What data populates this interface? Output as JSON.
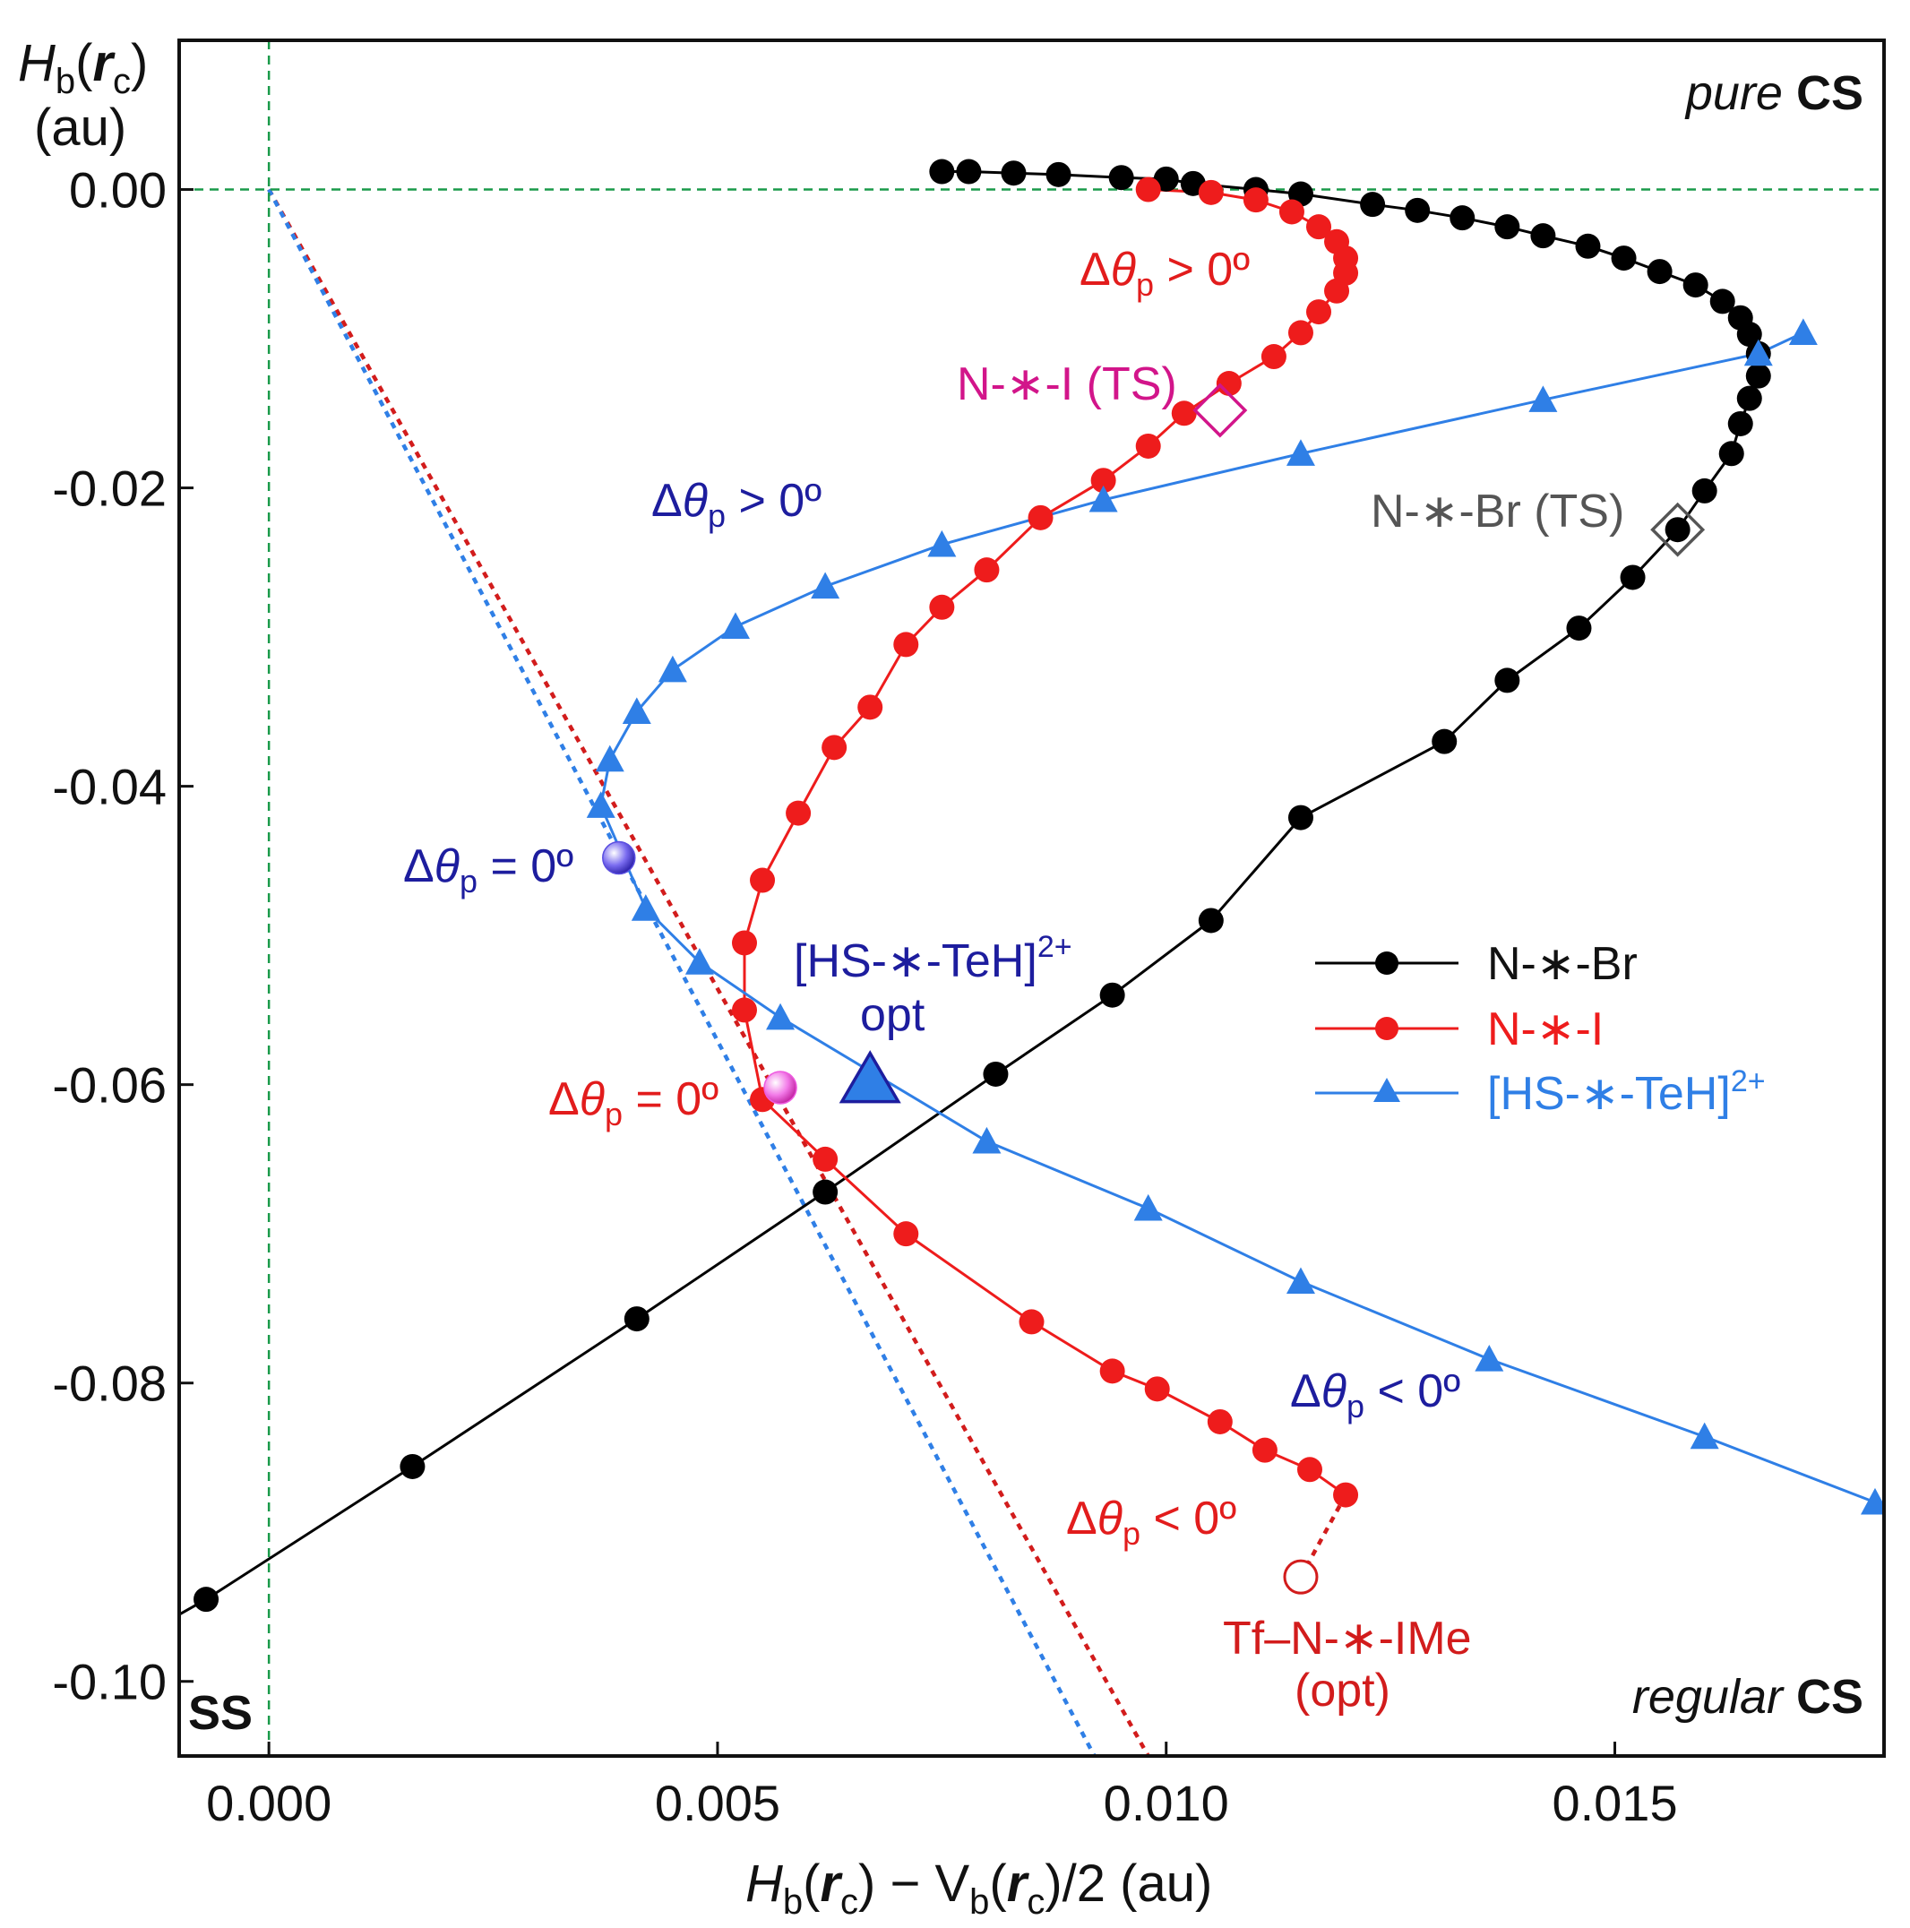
{
  "chart_data": {
    "type": "line",
    "title": "",
    "xlabel": "Hb(rc) − Vb(rc)/2 (au)",
    "ylabel": "Hb(rc) (au)",
    "xlim": [
      -0.001,
      0.018
    ],
    "ylim": [
      -0.105,
      0.01
    ],
    "x_ticks": [
      0.0,
      0.005,
      0.01,
      0.015
    ],
    "x_tick_labels": [
      "0.000",
      "0.005",
      "0.010",
      "0.015"
    ],
    "y_ticks": [
      0.0,
      -0.02,
      -0.04,
      -0.06,
      -0.08,
      -0.1
    ],
    "y_tick_labels": [
      "0.00",
      "-0.02",
      "-0.04",
      "-0.06",
      "-0.08",
      "-0.10"
    ],
    "grid": false,
    "legend_position": "center-right",
    "colors": {
      "black": "#000000",
      "red": "#ee1c1c",
      "blue": "#2f7fe6",
      "darkblue": "#1d1d9e",
      "green": "#1a9a4a",
      "magenta": "#d2158a",
      "gray": "#555555",
      "darkred": "#d21c1c"
    },
    "series": [
      {
        "name": "N-∗-Br",
        "color": "#000000",
        "marker": "circle",
        "points": [
          [
            -0.0007,
            -0.0945
          ],
          [
            0.0016,
            -0.0856
          ],
          [
            0.0041,
            -0.0757
          ],
          [
            0.0062,
            -0.0672
          ],
          [
            0.0081,
            -0.0593
          ],
          [
            0.0094,
            -0.054
          ],
          [
            0.0105,
            -0.049
          ],
          [
            0.0115,
            -0.0421
          ],
          [
            0.0131,
            -0.037
          ],
          [
            0.0138,
            -0.0329
          ],
          [
            0.0146,
            -0.0294
          ],
          [
            0.0152,
            -0.026
          ],
          [
            0.0157,
            -0.0228
          ],
          [
            0.016,
            -0.0202
          ],
          [
            0.0163,
            -0.0177
          ],
          [
            0.0164,
            -0.0157
          ],
          [
            0.0165,
            -0.014
          ],
          [
            0.0166,
            -0.0125
          ],
          [
            0.0166,
            -0.011
          ],
          [
            0.0165,
            -0.0097
          ],
          [
            0.0164,
            -0.0086
          ],
          [
            0.0162,
            -0.0075
          ],
          [
            0.0159,
            -0.0064
          ],
          [
            0.0155,
            -0.0055
          ],
          [
            0.0151,
            -0.0046
          ],
          [
            0.0147,
            -0.0038
          ],
          [
            0.0142,
            -0.0031
          ],
          [
            0.0138,
            -0.0025
          ],
          [
            0.0133,
            -0.0019
          ],
          [
            0.0128,
            -0.0014
          ],
          [
            0.0123,
            -0.001
          ],
          [
            0.0115,
            -0.0003
          ],
          [
            0.011,
            0.0
          ],
          [
            0.0103,
            0.0004
          ],
          [
            0.01,
            0.0007
          ],
          [
            0.0095,
            0.0008
          ],
          [
            0.0088,
            0.001
          ],
          [
            0.0083,
            0.0011
          ],
          [
            0.0078,
            0.0012
          ],
          [
            0.0075,
            0.0012
          ]
        ]
      },
      {
        "name": "N-∗-I",
        "color": "#ee1c1c",
        "marker": "circle",
        "points": [
          [
            0.012,
            -0.0875
          ],
          [
            0.0116,
            -0.0858
          ],
          [
            0.0111,
            -0.0845
          ],
          [
            0.0106,
            -0.0826
          ],
          [
            0.0099,
            -0.0804
          ],
          [
            0.0094,
            -0.0792
          ],
          [
            0.0085,
            -0.0759
          ],
          [
            0.0071,
            -0.07
          ],
          [
            0.0062,
            -0.065
          ],
          [
            0.0055,
            -0.061
          ],
          [
            0.0053,
            -0.055
          ],
          [
            0.0053,
            -0.0505
          ],
          [
            0.0055,
            -0.0463
          ],
          [
            0.0059,
            -0.0418
          ],
          [
            0.0063,
            -0.0374
          ],
          [
            0.0067,
            -0.0347
          ],
          [
            0.0071,
            -0.0305
          ],
          [
            0.0075,
            -0.028
          ],
          [
            0.008,
            -0.0255
          ],
          [
            0.0086,
            -0.022
          ],
          [
            0.0093,
            -0.0195
          ],
          [
            0.0098,
            -0.0172
          ],
          [
            0.0102,
            -0.015
          ],
          [
            0.0107,
            -0.013
          ],
          [
            0.0112,
            -0.0112
          ],
          [
            0.0115,
            -0.0096
          ],
          [
            0.0117,
            -0.0082
          ],
          [
            0.0119,
            -0.0068
          ],
          [
            0.012,
            -0.0056
          ],
          [
            0.012,
            -0.0046
          ],
          [
            0.0119,
            -0.0035
          ],
          [
            0.0117,
            -0.0025
          ],
          [
            0.0114,
            -0.0015
          ],
          [
            0.011,
            -0.0007
          ],
          [
            0.0105,
            -0.0002
          ],
          [
            0.0098,
            0.0
          ]
        ]
      },
      {
        "name": "[HS-∗-TeH]2+",
        "color": "#2f7fe6",
        "marker": "triangle",
        "points": [
          [
            0.0171,
            -0.0096
          ],
          [
            0.0166,
            -0.011
          ],
          [
            0.0142,
            -0.0141
          ],
          [
            0.0115,
            -0.0177
          ],
          [
            0.0093,
            -0.0208
          ],
          [
            0.0075,
            -0.0238
          ],
          [
            0.0062,
            -0.0266
          ],
          [
            0.0052,
            -0.0293
          ],
          [
            0.0045,
            -0.0322
          ],
          [
            0.0041,
            -0.035
          ],
          [
            0.0038,
            -0.0382
          ],
          [
            0.0037,
            -0.0413
          ],
          [
            0.0042,
            -0.0482
          ],
          [
            0.0048,
            -0.0518
          ],
          [
            0.0057,
            -0.0555
          ],
          [
            0.008,
            -0.0638
          ],
          [
            0.0098,
            -0.0683
          ],
          [
            0.0115,
            -0.0732
          ],
          [
            0.0136,
            -0.0784
          ],
          [
            0.016,
            -0.0836
          ],
          [
            0.0179,
            -0.088
          ]
        ]
      }
    ],
    "dashed_lines": [
      {
        "name": "red-trend",
        "color": "#d21c1c",
        "points": [
          [
            0.0,
            0.0
          ],
          [
            0.0098,
            -0.105
          ]
        ]
      },
      {
        "name": "blue-trend",
        "color": "#2f7fe6",
        "points": [
          [
            0.0,
            0.0
          ],
          [
            0.0092,
            -0.105
          ]
        ]
      },
      {
        "name": "x-zero-guide",
        "color": "#1a9a4a",
        "points": [
          [
            0.0,
            0.01
          ],
          [
            0.0,
            -0.105
          ]
        ]
      },
      {
        "name": "y-zero-guide",
        "color": "#1a9a4a",
        "points": [
          [
            -0.001,
            0.0
          ],
          [
            0.018,
            0.0
          ]
        ]
      },
      {
        "name": "tf-link",
        "color": "#d21c1c",
        "points": [
          [
            0.012,
            -0.0875
          ],
          [
            0.0115,
            -0.093
          ]
        ]
      }
    ],
    "special_markers": [
      {
        "name": "Br TS",
        "shape": "diamond",
        "x": 0.0157,
        "y": -0.0228,
        "color": "#555555"
      },
      {
        "name": "I TS",
        "shape": "diamond",
        "x": 0.0106,
        "y": -0.0148,
        "color": "#d2158a"
      },
      {
        "name": "HS-TeH opt",
        "shape": "triangle-open",
        "x": 0.0067,
        "y": -0.0597,
        "color": "#1d1d9e"
      },
      {
        "name": "blue zero",
        "shape": "sphere",
        "x": 0.0039,
        "y": -0.0448,
        "color": "#5a4ee0"
      },
      {
        "name": "red zero",
        "shape": "sphere",
        "x": 0.0057,
        "y": -0.0602,
        "color": "#ee5ae0"
      },
      {
        "name": "Tf opt",
        "shape": "open-circle",
        "x": 0.0115,
        "y": -0.093,
        "color": "#d21c1c"
      }
    ],
    "legend": [
      {
        "label": "N-∗-Br",
        "color": "#000000",
        "marker": "circle"
      },
      {
        "label": "N-∗-I",
        "color": "#ee1c1c",
        "marker": "circle"
      },
      {
        "label": "[HS-∗-TeH]2+",
        "color": "#2f7fe6",
        "marker": "triangle"
      }
    ],
    "annotations": {
      "corner_pure_italic": "pure",
      "corner_pure_bold": "CS",
      "corner_regular_italic": "regular",
      "corner_regular_bold": "CS",
      "corner_ss": "SS",
      "red_dtheta_pos": "> 0º",
      "red_dtheta_zero": "= 0º",
      "red_dtheta_neg": "< 0º",
      "blue_dtheta_pos": "> 0º",
      "blue_dtheta_zero": "= 0º",
      "blue_dtheta_neg": "< 0º",
      "i_ts_label": "N-∗-I (TS)",
      "br_ts_label": "N-∗-Br (TS)",
      "hs_label_line1": "[HS-∗-TeH]",
      "hs_label_sup": "2+",
      "hs_label_line2": "opt",
      "tf_label_line1": "Tf–N-∗-IMe",
      "tf_label_line2": "(opt)"
    },
    "axis_text": {
      "y_H": "H",
      "y_b": "b",
      "y_r": "r",
      "y_c": "c",
      "y_unit": "(au)",
      "x_H": "H",
      "x_b1": "b",
      "x_r1": "r",
      "x_c1": "c",
      "x_minus": " − V",
      "x_b2": "b",
      "x_r2": "r",
      "x_c2": "c",
      "x_tail": ")/2 (au)"
    },
    "legend_text": {
      "br": "N-∗-Br",
      "i": "N-∗-I",
      "hs": "[HS-∗-TeH]",
      "hs_sup": "2+"
    }
  }
}
